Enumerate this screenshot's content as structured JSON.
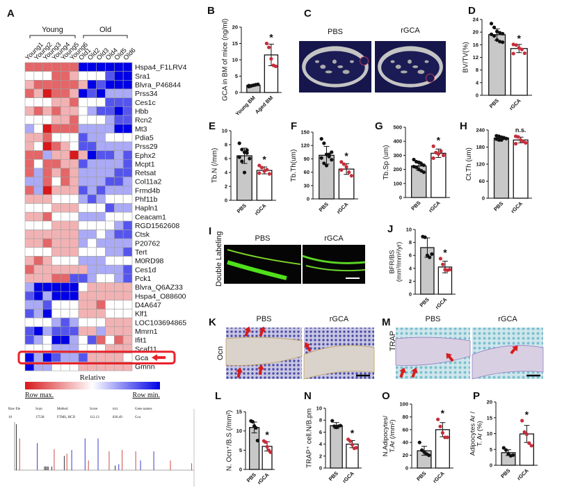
{
  "heatmap": {
    "panel": "A",
    "groups": [
      "Young",
      "Old"
    ],
    "columns": [
      "Young1",
      "Young2",
      "Young3",
      "Young4",
      "Young5",
      "Young6",
      "Old1",
      "Old2",
      "Old3",
      "Old4",
      "Old5",
      "Old6"
    ],
    "genes": [
      "Hspa4_F1LRV4",
      "Sra1",
      "Blvra_P46844",
      "Prss34",
      "Ces1c",
      "Hbb",
      "Rcn2",
      "Mt3",
      "Pdia5",
      "Prss29",
      "Ephx2",
      "Mcpt1",
      "Retsat",
      "Col11a2",
      "Frmd4b",
      "Phf11b",
      "Hapln1",
      "Ceacam1",
      "RGD1562608",
      "Ctsk",
      "P20762",
      "Tert",
      "M0RD98",
      "Ces1d",
      "Pck1",
      "Blvra_Q6AZ33",
      "Hspa4_O88600",
      "D4A647",
      "Klf1",
      "LOC103694865",
      "Mmrn1",
      "Ifit1",
      "Scaf11",
      "Gca",
      "Gmnn"
    ],
    "values": [
      [
        2,
        2,
        2,
        2,
        2,
        2,
        -3,
        -3,
        -3,
        -3,
        -3,
        -3
      ],
      [
        0,
        0,
        0,
        2,
        2,
        1,
        0,
        0,
        0,
        -2,
        -3,
        -3
      ],
      [
        1,
        2,
        2,
        2,
        2,
        2,
        1,
        -3,
        -2,
        -3,
        -3,
        -3
      ],
      [
        2,
        1,
        3,
        2,
        2,
        1,
        -3,
        -2,
        -3,
        -1,
        -1,
        -1
      ],
      [
        0,
        0,
        0,
        1,
        1,
        2,
        0,
        0,
        0,
        -2,
        -2,
        -2
      ],
      [
        1,
        2,
        1,
        2,
        1,
        1,
        0,
        -1,
        -2,
        -2,
        -3,
        -2
      ],
      [
        0,
        0,
        0,
        1,
        1,
        2,
        0,
        0,
        0,
        -1,
        -2,
        -2
      ],
      [
        -1,
        0,
        3,
        2,
        2,
        2,
        -1,
        -1,
        -1,
        -1,
        -3,
        -3
      ],
      [
        1,
        1,
        2,
        0,
        0,
        0,
        -2,
        -1,
        -1,
        0,
        0,
        0
      ],
      [
        1,
        0,
        3,
        2,
        1,
        0,
        -2,
        -2,
        -1,
        -1,
        -1,
        -1
      ],
      [
        2,
        2,
        -1,
        1,
        1,
        3,
        1,
        -3,
        -2,
        -2,
        -1,
        -2
      ],
      [
        2,
        0,
        2,
        2,
        1,
        1,
        -2,
        -1,
        -1,
        -1,
        -1,
        -2
      ],
      [
        2,
        -1,
        2,
        1,
        2,
        1,
        -1,
        -1,
        -1,
        -1,
        -2,
        -2
      ],
      [
        -1,
        -1,
        2,
        0,
        2,
        1,
        -1,
        -1,
        -1,
        -2,
        -2,
        -1
      ],
      [
        2,
        -1,
        3,
        1,
        1,
        1,
        -2,
        -1,
        -2,
        -1,
        -1,
        -1
      ],
      [
        1,
        1,
        1,
        0,
        0,
        0,
        -1,
        -2,
        -1,
        0,
        0,
        0
      ],
      [
        0,
        0,
        0,
        1,
        1,
        1,
        0,
        0,
        0,
        -2,
        -1,
        -1
      ],
      [
        1,
        1,
        2,
        0,
        0,
        0,
        -1,
        -1,
        -1,
        0,
        0,
        0
      ],
      [
        0,
        0,
        0,
        1,
        1,
        1,
        0,
        0,
        0,
        0,
        -1,
        -2
      ],
      [
        1,
        1,
        1,
        1,
        1,
        1,
        -1,
        -1,
        0,
        -1,
        -2,
        -2
      ],
      [
        1,
        1,
        2,
        1,
        1,
        1,
        -1,
        0,
        -1,
        -1,
        -1,
        -1
      ],
      [
        0,
        0,
        0,
        1,
        1,
        1,
        0,
        0,
        0,
        -1,
        -1,
        -2
      ],
      [
        1,
        2,
        1,
        0,
        0,
        0,
        -1,
        -1,
        -1,
        0,
        0,
        0
      ],
      [
        2,
        1,
        1,
        1,
        1,
        1,
        1,
        -1,
        -1,
        -1,
        -1,
        -2
      ],
      [
        1,
        1,
        1,
        2,
        2,
        -2,
        -2,
        -1,
        0,
        0,
        -1,
        -2
      ],
      [
        -1,
        -3,
        -3,
        -3,
        -3,
        -3,
        0,
        1,
        1,
        1,
        1,
        1
      ],
      [
        -2,
        -3,
        -1,
        -3,
        -3,
        -3,
        1,
        1,
        1,
        1,
        1,
        1
      ],
      [
        -1,
        -1,
        -2,
        0,
        0,
        0,
        1,
        1,
        2,
        0,
        0,
        0
      ],
      [
        -2,
        -1,
        -3,
        0,
        0,
        0,
        1,
        1,
        1,
        0,
        0,
        0
      ],
      [
        0,
        0,
        0,
        -1,
        -2,
        -1,
        0,
        0,
        0,
        1,
        1,
        1
      ],
      [
        -2,
        -3,
        -1,
        -2,
        -2,
        -2,
        1,
        1,
        -1,
        1,
        1,
        1
      ],
      [
        -2,
        -1,
        0,
        -3,
        -3,
        -1,
        0,
        -2,
        2,
        0,
        2,
        1
      ],
      [
        0,
        0,
        0,
        -1,
        -1,
        -1,
        0,
        0,
        0,
        1,
        1,
        1
      ],
      [
        -3,
        -1,
        -3,
        -2,
        -1,
        -1,
        -2,
        1,
        1,
        1,
        1,
        0
      ],
      [
        -3,
        -1,
        -1,
        0,
        0,
        0,
        1,
        1,
        1,
        1,
        1,
        1
      ]
    ],
    "highlighted_gene": "Gca",
    "highlight_color": "#e8222a",
    "colorbar": {
      "title": "Relative",
      "left_label": "Row max.",
      "right_label": "Row min.",
      "max_color": "#d7191c",
      "mid_color": "#ffffff",
      "min_color": "#0000e6"
    }
  },
  "spectrum": {
    "header": [
      "Raw file",
      "Scan",
      "Method",
      "Score",
      "m/z",
      "Gene names"
    ],
    "values": [
      "10",
      "17538",
      "FTMS, HCD",
      "112.13",
      "830.49",
      "Gca"
    ],
    "xlim": [
      180,
      1820
    ],
    "peaks": [
      {
        "mz": 196,
        "intensity": 100,
        "ion": "other"
      },
      {
        "mz": 226,
        "intensity": 69,
        "ion": "y"
      },
      {
        "mz": 387,
        "intensity": 59,
        "ion": "b"
      },
      {
        "mz": 453,
        "intensity": 8,
        "ion": "other"
      },
      {
        "mz": 464,
        "intensity": 8,
        "ion": "other"
      },
      {
        "mz": 476,
        "intensity": 8,
        "ion": "other"
      },
      {
        "mz": 487,
        "intensity": 8,
        "ion": "other"
      },
      {
        "mz": 520,
        "intensity": 8,
        "ion": "other"
      },
      {
        "mz": 542,
        "intensity": 46,
        "ion": "y"
      },
      {
        "mz": 634,
        "intensity": 31,
        "ion": "other"
      },
      {
        "mz": 658,
        "intensity": 36,
        "ion": "y"
      },
      {
        "mz": 702,
        "intensity": 44,
        "ion": "b"
      },
      {
        "mz": 824,
        "intensity": 69,
        "ion": "b"
      },
      {
        "mz": 855,
        "intensity": 21,
        "ion": "y"
      },
      {
        "mz": 943,
        "intensity": 69,
        "ion": "b"
      },
      {
        "mz": 1044,
        "intensity": 41,
        "ion": "y"
      },
      {
        "mz": 1099,
        "intensity": 10,
        "ion": "other"
      },
      {
        "mz": 1132,
        "intensity": 13,
        "ion": "b"
      },
      {
        "mz": 1163,
        "intensity": 44,
        "ion": "y"
      },
      {
        "mz": 1287,
        "intensity": 41,
        "ion": "y"
      },
      {
        "mz": 1331,
        "intensity": 21,
        "ion": "b"
      },
      {
        "mz": 1452,
        "intensity": 41,
        "ion": "b"
      },
      {
        "mz": 1604,
        "intensity": 21,
        "ion": "y"
      },
      {
        "mz": 1798,
        "intensity": 15,
        "ion": "y"
      }
    ],
    "ion_colors": {
      "b": "#3b3bd0",
      "y": "#d04848",
      "other": "#333333"
    }
  },
  "images": {
    "C": {
      "panel": "C",
      "labels": [
        "PBS",
        "rGCA"
      ]
    },
    "I": {
      "panel": "I",
      "side_label": "Double Labeling",
      "labels": [
        "PBS",
        "rGCA"
      ]
    },
    "K": {
      "panel": "K",
      "side_label": "Ocn",
      "labels": [
        "PBS",
        "rGCA"
      ]
    },
    "M": {
      "panel": "M",
      "side_label": "TRAP",
      "labels": [
        "PBS",
        "rGCA"
      ]
    }
  },
  "chart_colors": {
    "bars": [
      "#c8c8c8",
      "#ffffff"
    ],
    "points": [
      "#111111",
      "#c62d3a"
    ]
  },
  "chart_data": [
    {
      "panel": "B",
      "type": "bar",
      "categories": [
        "Young BM",
        "Aged BM"
      ],
      "ylabel": [
        "GCA in BM of mice (ng/ml)"
      ],
      "ylim": [
        0,
        20
      ],
      "ticks": [
        0,
        5,
        10,
        15,
        20
      ],
      "values": [
        2.2,
        11.5
      ],
      "error": [
        0.3,
        3.3
      ],
      "points": [
        [
          1.8,
          2.0,
          2.2,
          2.4,
          2.5,
          2.1
        ],
        [
          15.0,
          13.8,
          10.3,
          8.3,
          8.0
        ]
      ],
      "significance": "*"
    },
    {
      "panel": "D",
      "type": "bar",
      "categories": [
        "PBS",
        "rGCA"
      ],
      "ylabel": [
        "BV/TV(%)"
      ],
      "ylim": [
        0,
        24
      ],
      "ticks": [
        0,
        4,
        8,
        12,
        16,
        20,
        24
      ],
      "values": [
        19.2,
        14.8
      ],
      "error": [
        1.8,
        1.3
      ],
      "points": [
        [
          22.7,
          21.5,
          20.2,
          19.8,
          19.5,
          19.3,
          18.8,
          17.5,
          17.0,
          16.8
        ],
        [
          16.1,
          15.9,
          15.0,
          14.5,
          13.3,
          13.2
        ]
      ],
      "significance": "*"
    },
    {
      "panel": "E",
      "type": "bar",
      "categories": [
        "PBS",
        "rGCA"
      ],
      "ylabel": [
        "Tb.N (/mm)"
      ],
      "ylim": [
        0,
        10
      ],
      "ticks": [
        0,
        2,
        4,
        6,
        8,
        10
      ],
      "values": [
        6.4,
        4.3
      ],
      "error": [
        1.1,
        0.5
      ],
      "points": [
        [
          8.2,
          7.3,
          6.9,
          7.2,
          6.0,
          6.2,
          5.6,
          4.0,
          6.8
        ],
        [
          5.0,
          4.7,
          4.2,
          4.4,
          3.8,
          3.9
        ]
      ],
      "significance": "*"
    },
    {
      "panel": "F",
      "type": "bar",
      "categories": [
        "PBS",
        "rGCA"
      ],
      "ylabel": [
        "Tb.Th(um)"
      ],
      "ylim": [
        0,
        150
      ],
      "ticks": [
        0,
        30,
        60,
        90,
        120,
        150
      ],
      "values": [
        98,
        67
      ],
      "error": [
        20,
        12
      ],
      "points": [
        [
          135,
          125,
          100,
          95,
          88,
          92,
          80,
          75,
          100,
          105
        ],
        [
          83,
          78,
          72,
          60,
          52,
          65
        ]
      ],
      "significance": "*"
    },
    {
      "panel": "G",
      "type": "bar",
      "categories": [
        "PBS",
        "rGCA"
      ],
      "ylabel": [
        "Tb.Sp (um)"
      ],
      "ylim": [
        0,
        500
      ],
      "ticks": [
        0,
        100,
        200,
        300,
        400,
        500
      ],
      "values": [
        225,
        315
      ],
      "error": [
        30,
        30
      ],
      "points": [
        [
          270,
          255,
          250,
          240,
          230,
          220,
          215,
          200,
          190,
          180
        ],
        [
          365,
          320,
          310,
          330,
          300,
          280
        ]
      ],
      "significance": "*"
    },
    {
      "panel": "H",
      "type": "bar",
      "categories": [
        "PBS",
        "rGCA"
      ],
      "ylabel": [
        "Ct.Th (um)"
      ],
      "ylim": [
        0,
        240
      ],
      "ticks": [
        0,
        60,
        120,
        180,
        240
      ],
      "values": [
        212,
        205
      ],
      "error": [
        6,
        10
      ],
      "points": [
        [
          220,
          218,
          215,
          213,
          210,
          208,
          205,
          205,
          212
        ],
        [
          218,
          216,
          205,
          200,
          195,
          192
        ]
      ],
      "significance": "n.s."
    },
    {
      "panel": "J",
      "type": "bar",
      "categories": [
        "PBS",
        "rGCA"
      ],
      "ylabel": [
        "BFR/BS",
        "(mm³/mm²/yr)"
      ],
      "ylim": [
        0,
        10
      ],
      "ticks": [
        0,
        2,
        4,
        6,
        8,
        10
      ],
      "values": [
        7.2,
        4.2
      ],
      "error": [
        1.5,
        0.9
      ],
      "points": [
        [
          8.9,
          8.8,
          6.0,
          5.7,
          6.2
        ],
        [
          5.5,
          4.6,
          3.8,
          3.7,
          3.8
        ]
      ],
      "significance": "*"
    },
    {
      "panel": "L",
      "type": "bar",
      "categories": [
        "PBS",
        "rGCA"
      ],
      "ylabel": [
        "N. Ocn⁺/B.S (/mm²)"
      ],
      "ylim": [
        0,
        15
      ],
      "ticks": [
        0,
        5,
        10,
        15
      ],
      "values": [
        10.9,
        6.0
      ],
      "error": [
        1.4,
        1.2
      ],
      "points": [
        [
          12.6,
          12.4,
          11.3,
          10.8,
          7.5
        ],
        [
          7.4,
          7.1,
          5.9,
          5.0,
          4.5
        ]
      ],
      "significance": "*"
    },
    {
      "panel": "N",
      "type": "bar",
      "categories": [
        "PBS",
        "rGCA"
      ],
      "ylabel": [
        "TRAP⁺ cell.N/B.pm"
      ],
      "ylim": [
        0,
        10
      ],
      "ticks": [
        0,
        2,
        4,
        6,
        8,
        10
      ],
      "values": [
        7.1,
        4.0
      ],
      "error": [
        0.5,
        0.6
      ],
      "points": [
        [
          7.9,
          7.0,
          6.8,
          7.0,
          7.1
        ],
        [
          4.8,
          4.5,
          3.9,
          3.3,
          3.4
        ]
      ],
      "significance": "*"
    },
    {
      "panel": "O",
      "type": "bar",
      "categories": [
        "PBS",
        "rGCA"
      ],
      "ylabel": [
        "N.Adipocytes/",
        "T.Ar (/mm²)"
      ],
      "ylim": [
        0,
        100
      ],
      "ticks": [
        0,
        20,
        40,
        60,
        80,
        100
      ],
      "values": [
        27,
        60
      ],
      "error": [
        7,
        11
      ],
      "points": [
        [
          40,
          28,
          25,
          22,
          20
        ],
        [
          76,
          65,
          55,
          48,
          48
        ]
      ],
      "significance": "*"
    },
    {
      "panel": "P",
      "type": "bar",
      "categories": [
        "PBS",
        "rGCA"
      ],
      "ylabel": [
        "Adipocytes Ar /",
        "T. Ar (%)"
      ],
      "ylim": [
        0,
        20
      ],
      "ticks": [
        0,
        5,
        10,
        15,
        20
      ],
      "values": [
        4.0,
        9.9
      ],
      "error": [
        0.9,
        2.7
      ],
      "points": [
        [
          5.5,
          4.8,
          3.5,
          3.0,
          3.2
        ],
        [
          14.1,
          10.5,
          9.8,
          7.0,
          6.2
        ]
      ],
      "significance": "*"
    }
  ]
}
